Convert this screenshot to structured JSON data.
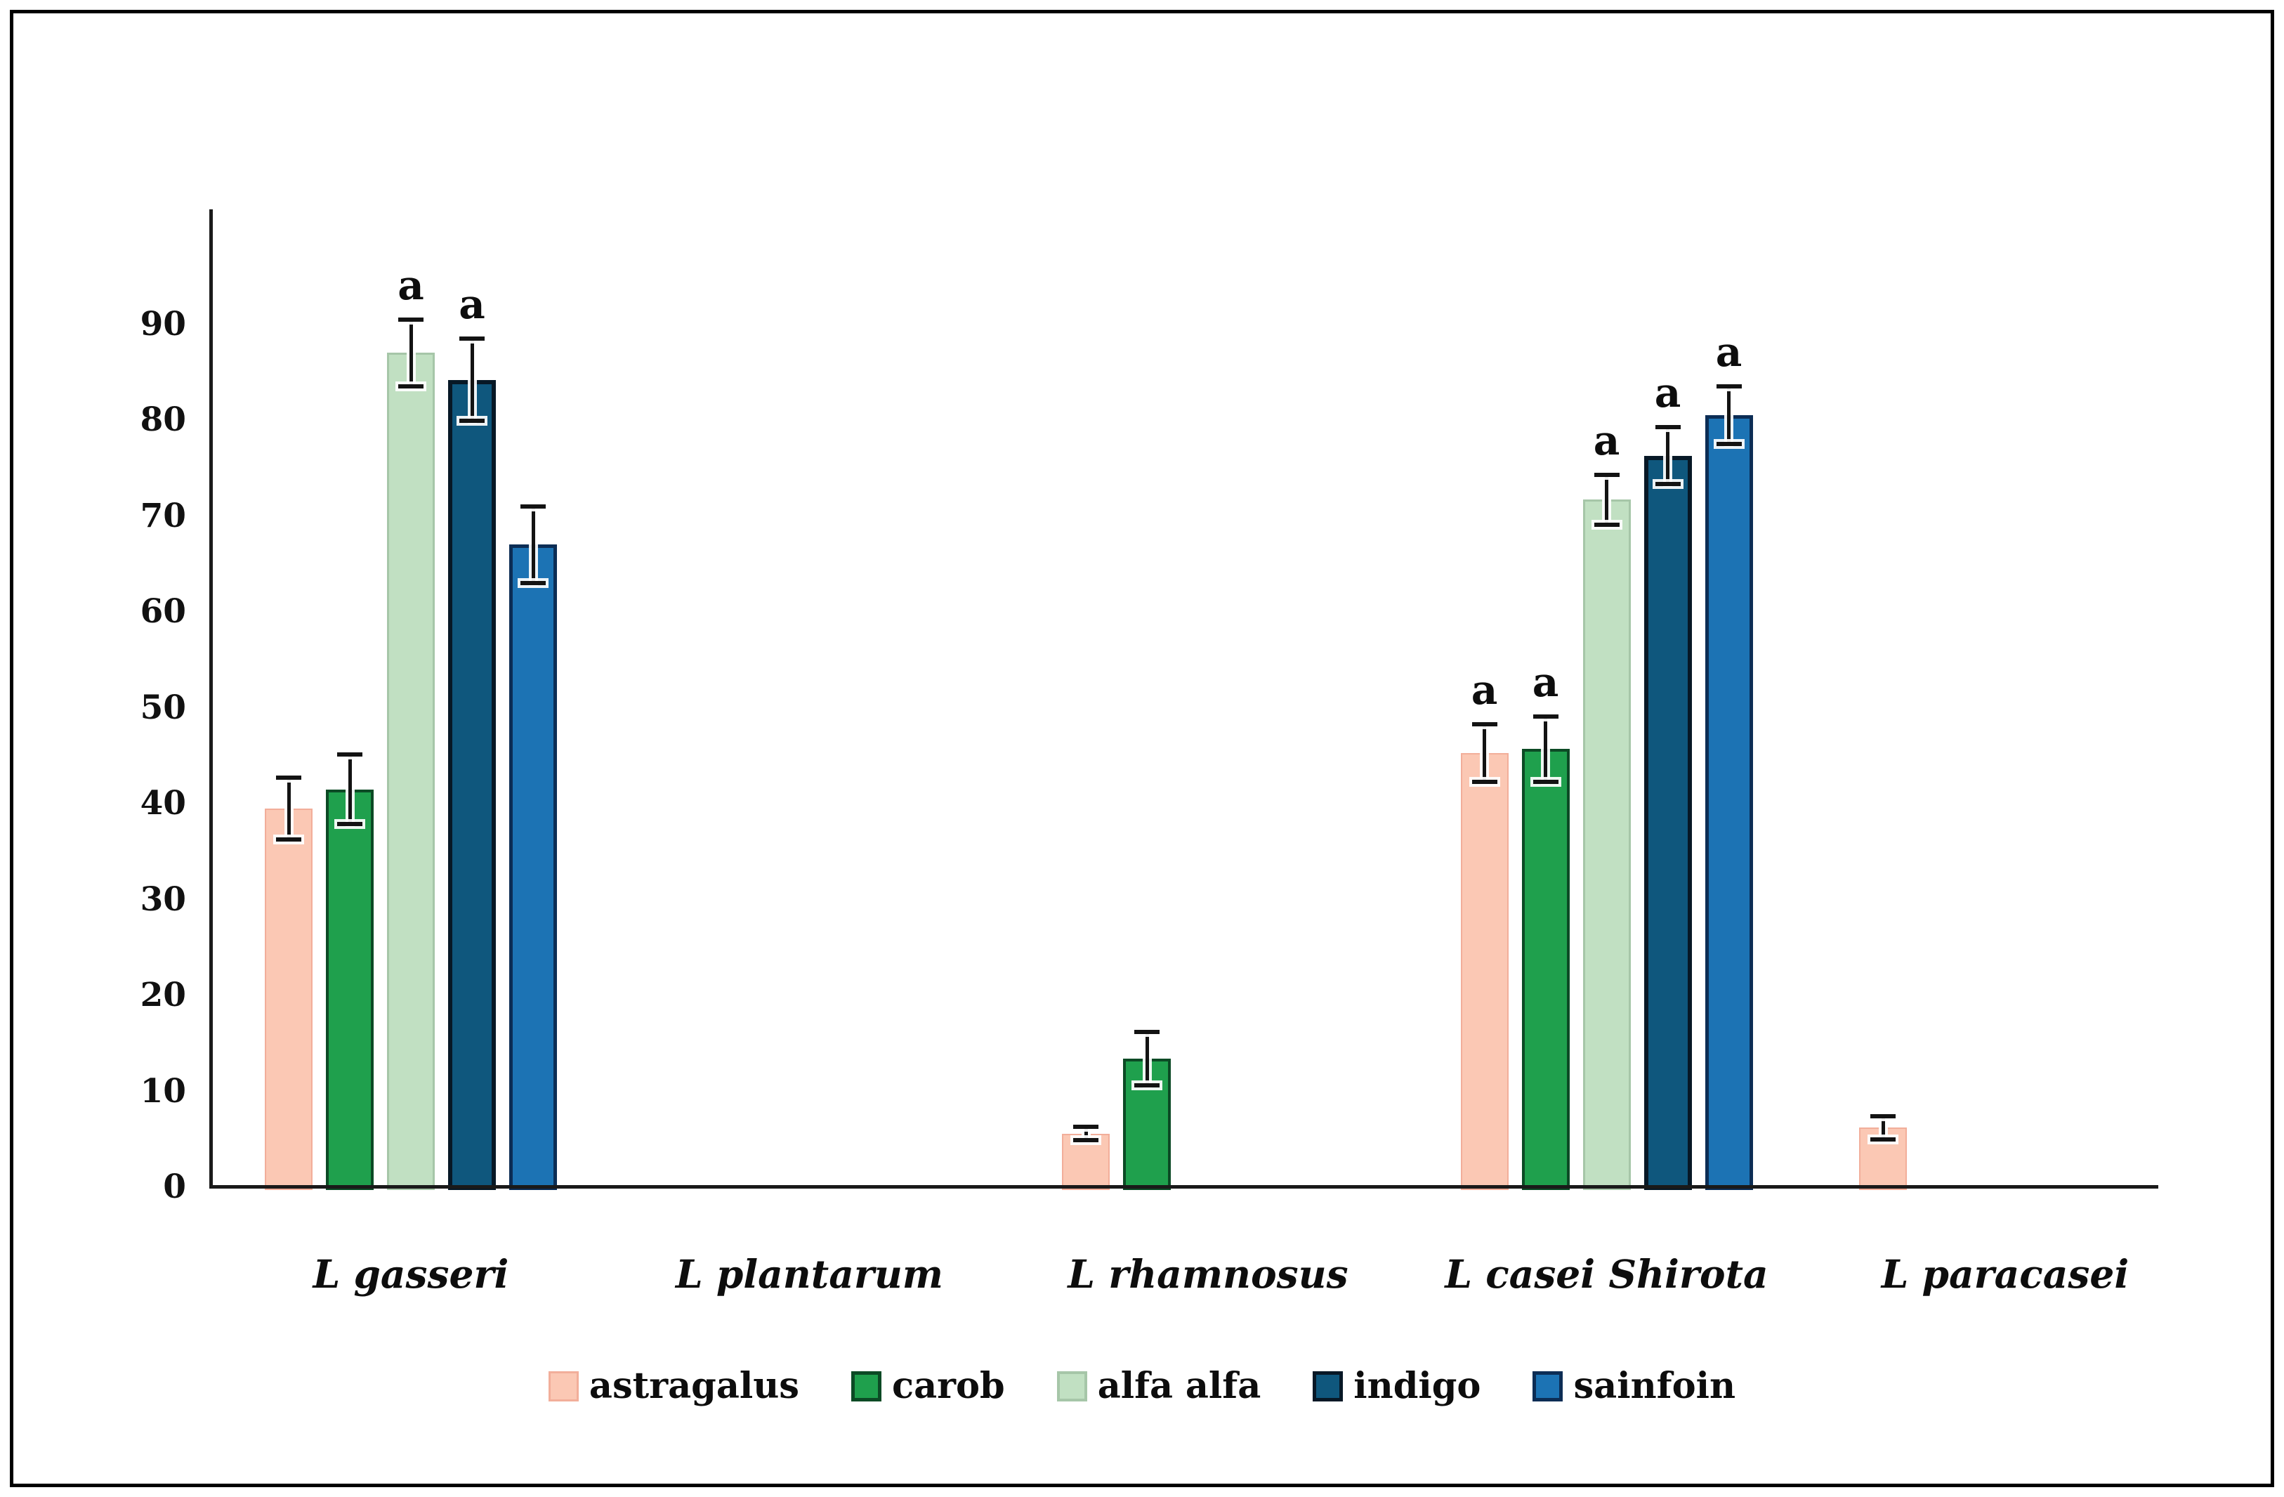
{
  "figure": {
    "background": "#ffffff",
    "frame_color": "#000000",
    "axis_color": "#1a1a1a"
  },
  "chart_data": {
    "type": "bar",
    "title": "",
    "xlabel": "",
    "ylabel": "",
    "categories": [
      "L gasseri",
      "L plantarum",
      "L rhamnosus",
      "L casei Shirota",
      "L paracasei"
    ],
    "series": [
      {
        "name": "astragalus",
        "fill": "#FBC8B4",
        "border": "#F2AE9A",
        "border_px": 2,
        "values": [
          39.5,
          0,
          5.6,
          45.3,
          6.2
        ],
        "errors": [
          3.2,
          0,
          0.7,
          3.0,
          1.2
        ],
        "annotations": [
          "",
          "",
          "",
          "a",
          ""
        ]
      },
      {
        "name": "carob",
        "fill": "#1FA04D",
        "border": "#0C4A25",
        "border_px": 4,
        "values": [
          41.5,
          0,
          13.4,
          45.7,
          0
        ],
        "errors": [
          3.6,
          0,
          2.8,
          3.4,
          0
        ],
        "annotations": [
          "",
          "",
          "",
          "a",
          ""
        ]
      },
      {
        "name": "alfa alfa",
        "fill": "#C1E0C2",
        "border": "#A6C6A8",
        "border_px": 3,
        "values": [
          87,
          0,
          0,
          71.7,
          0
        ],
        "errors": [
          3.5,
          0,
          0,
          2.6,
          0
        ],
        "annotations": [
          "a",
          "",
          "",
          "a",
          ""
        ]
      },
      {
        "name": "indigo",
        "fill": "#0F577D",
        "border": "#071826",
        "border_px": 6,
        "values": [
          84.2,
          0,
          0,
          76.3,
          0
        ],
        "errors": [
          4.3,
          0,
          0,
          3.0,
          0
        ],
        "annotations": [
          "a",
          "",
          "",
          "a",
          ""
        ]
      },
      {
        "name": "sainfoin",
        "fill": "#1C73B4",
        "border": "#0C2D55",
        "border_px": 5,
        "values": [
          67,
          0,
          0,
          80.5,
          0
        ],
        "errors": [
          4.0,
          0,
          0,
          3.0,
          0
        ],
        "annotations": [
          "",
          "",
          "",
          "a",
          ""
        ]
      }
    ],
    "yticks": [
      0,
      10,
      20,
      30,
      40,
      50,
      60,
      70,
      80,
      90
    ],
    "ylim": [
      0,
      101
    ],
    "grid": false,
    "legend_position": "bottom",
    "annotation_letter": "a"
  }
}
